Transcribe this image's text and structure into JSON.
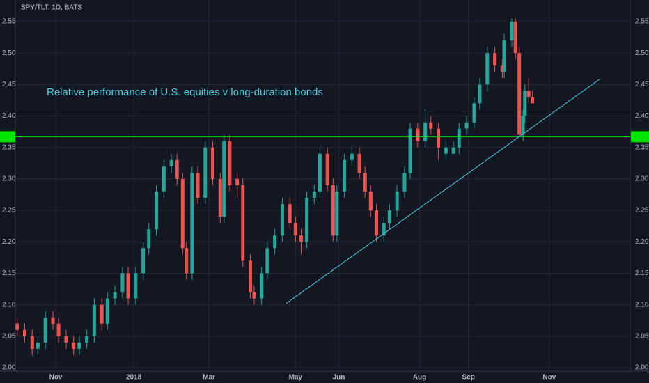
{
  "chart_data": {
    "type": "candlestick",
    "title": "SPY/TLT, 1D, BATS",
    "annotation": "Relative performance of U.S. equities v long-duration bonds",
    "up_color": "#26a69a",
    "down_color": "#ef5350",
    "xlim": [
      0,
      327
    ],
    "xticks": [
      {
        "value": 21.5,
        "label": "Nov"
      },
      {
        "value": 63,
        "label": "2018"
      },
      {
        "value": 103,
        "label": "Mar"
      },
      {
        "value": 149,
        "label": "May"
      },
      {
        "value": 172,
        "label": "Jun"
      },
      {
        "value": 215,
        "label": "Aug"
      },
      {
        "value": 241,
        "label": "Sep"
      },
      {
        "value": 284,
        "label": "Nov"
      }
    ],
    "ylim": [
      2.0,
      2.55
    ],
    "yticks": [
      {
        "value": 2.0,
        "label": "2.00"
      },
      {
        "value": 2.05,
        "label": "2.05"
      },
      {
        "value": 2.1,
        "label": "2.10"
      },
      {
        "value": 2.15,
        "label": "2.15"
      },
      {
        "value": 2.2,
        "label": "2.20"
      },
      {
        "value": 2.25,
        "label": "2.25"
      },
      {
        "value": 2.3,
        "label": "2.30"
      },
      {
        "value": 2.35,
        "label": "2.35"
      },
      {
        "value": 2.4,
        "label": "2.40"
      },
      {
        "value": 2.45,
        "label": "2.45"
      },
      {
        "value": 2.5,
        "label": "2.50"
      },
      {
        "value": 2.55,
        "label": "2.55"
      }
    ],
    "grid": true,
    "x": [
      1,
      5,
      9,
      12,
      16,
      20,
      23,
      27,
      31,
      34,
      38,
      42,
      46,
      49,
      53,
      57,
      60,
      64,
      68,
      71,
      75,
      79,
      83,
      86,
      89,
      91,
      94,
      97,
      101,
      105,
      109,
      111,
      114,
      118,
      121,
      125,
      127,
      131,
      134,
      138,
      142,
      146,
      149,
      152,
      155,
      159,
      162,
      166,
      169,
      171,
      175,
      179,
      183,
      186,
      189,
      192,
      196,
      199,
      203,
      207,
      210,
      214,
      218,
      221,
      225,
      229,
      233,
      236,
      240,
      244,
      247,
      251,
      255,
      259,
      260,
      264,
      266,
      268,
      270,
      271,
      273,
      275
    ],
    "open": [
      2.07,
      2.06,
      2.05,
      2.03,
      2.04,
      2.08,
      2.07,
      2.05,
      2.04,
      2.03,
      2.04,
      2.05,
      2.1,
      2.07,
      2.11,
      2.12,
      2.15,
      2.11,
      2.15,
      2.19,
      2.22,
      2.28,
      2.32,
      2.33,
      2.3,
      2.19,
      2.15,
      2.31,
      2.27,
      2.35,
      2.3,
      2.24,
      2.36,
      2.3,
      2.29,
      2.17,
      2.12,
      2.11,
      2.15,
      2.19,
      2.21,
      2.26,
      2.23,
      2.21,
      2.2,
      2.27,
      2.28,
      2.34,
      2.29,
      2.21,
      2.28,
      2.33,
      2.34,
      2.31,
      2.28,
      2.25,
      2.21,
      2.23,
      2.25,
      2.28,
      2.31,
      2.38,
      2.36,
      2.39,
      2.38,
      2.34,
      2.34,
      2.35,
      2.38,
      2.39,
      2.42,
      2.45,
      2.5,
      2.48,
      2.47,
      2.52,
      2.55,
      2.5,
      2.37,
      2.4,
      2.44,
      2.43
    ],
    "high": [
      2.08,
      2.07,
      2.06,
      2.05,
      2.09,
      2.09,
      2.08,
      2.06,
      2.05,
      2.05,
      2.06,
      2.11,
      2.11,
      2.12,
      2.13,
      2.16,
      2.16,
      2.16,
      2.2,
      2.23,
      2.29,
      2.33,
      2.34,
      2.34,
      2.31,
      2.2,
      2.32,
      2.32,
      2.36,
      2.36,
      2.31,
      2.37,
      2.37,
      2.31,
      2.3,
      2.18,
      2.13,
      2.16,
      2.2,
      2.22,
      2.27,
      2.27,
      2.24,
      2.22,
      2.28,
      2.29,
      2.35,
      2.35,
      2.3,
      2.29,
      2.34,
      2.35,
      2.35,
      2.32,
      2.29,
      2.26,
      2.24,
      2.26,
      2.29,
      2.32,
      2.39,
      2.39,
      2.41,
      2.4,
      2.39,
      2.36,
      2.36,
      2.39,
      2.4,
      2.43,
      2.46,
      2.51,
      2.51,
      2.49,
      2.53,
      2.555,
      2.555,
      2.51,
      2.41,
      2.45,
      2.46,
      2.44
    ],
    "low": [
      2.05,
      2.04,
      2.02,
      2.02,
      2.03,
      2.06,
      2.04,
      2.03,
      2.02,
      2.02,
      2.03,
      2.04,
      2.06,
      2.06,
      2.1,
      2.11,
      2.1,
      2.1,
      2.14,
      2.18,
      2.21,
      2.27,
      2.31,
      2.29,
      2.18,
      2.14,
      2.14,
      2.26,
      2.26,
      2.29,
      2.23,
      2.23,
      2.28,
      2.27,
      2.16,
      2.11,
      2.1,
      2.1,
      2.14,
      2.18,
      2.2,
      2.22,
      2.2,
      2.18,
      2.19,
      2.26,
      2.27,
      2.28,
      2.2,
      2.2,
      2.27,
      2.32,
      2.3,
      2.27,
      2.24,
      2.2,
      2.2,
      2.22,
      2.24,
      2.27,
      2.3,
      2.35,
      2.35,
      2.37,
      2.33,
      2.33,
      2.34,
      2.34,
      2.37,
      2.38,
      2.41,
      2.44,
      2.47,
      2.46,
      2.46,
      2.51,
      2.49,
      2.37,
      2.36,
      2.39,
      2.42,
      2.42
    ],
    "close": [
      2.06,
      2.05,
      2.03,
      2.04,
      2.08,
      2.07,
      2.05,
      2.04,
      2.03,
      2.04,
      2.05,
      2.1,
      2.07,
      2.11,
      2.12,
      2.15,
      2.11,
      2.15,
      2.19,
      2.22,
      2.28,
      2.32,
      2.33,
      2.3,
      2.19,
      2.15,
      2.31,
      2.27,
      2.35,
      2.3,
      2.24,
      2.36,
      2.29,
      2.29,
      2.17,
      2.12,
      2.11,
      2.15,
      2.19,
      2.21,
      2.26,
      2.23,
      2.21,
      2.2,
      2.27,
      2.28,
      2.34,
      2.29,
      2.21,
      2.28,
      2.33,
      2.34,
      2.31,
      2.28,
      2.25,
      2.21,
      2.23,
      2.25,
      2.28,
      2.31,
      2.38,
      2.36,
      2.39,
      2.38,
      2.35,
      2.35,
      2.35,
      2.38,
      2.39,
      2.42,
      2.45,
      2.5,
      2.48,
      2.47,
      2.52,
      2.55,
      2.5,
      2.37,
      2.4,
      2.44,
      2.43,
      2.42
    ],
    "hline": {
      "value": 2.367,
      "color": "#00e600"
    },
    "trendline": {
      "x": [
        144,
        311
      ],
      "y": [
        2.102,
        2.459
      ],
      "color": "#4dd0e1"
    }
  }
}
